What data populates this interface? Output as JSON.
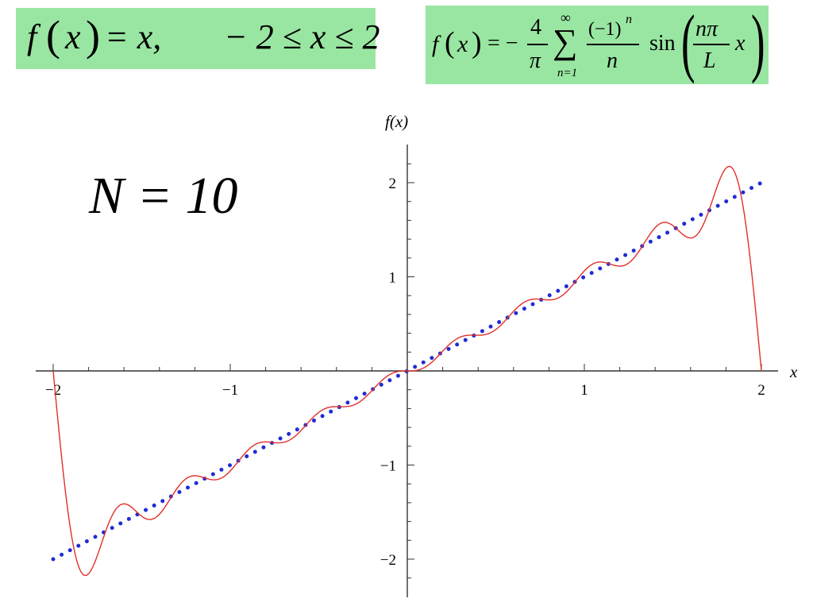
{
  "formula_left": {
    "f": "f",
    "lparen": "(",
    "x": "x",
    "rparen": ")",
    "equals_x": "= x,",
    "domain": "− 2 ≤ x ≤ 2"
  },
  "formula_right": {
    "lhs": "f",
    "lhs_x": "x",
    "eq_minus": "= −",
    "num": "4",
    "den": "π",
    "sum_top": "∞",
    "sigma": "∑",
    "sum_bottom": "n=1",
    "term_num": "(−1)",
    "term_exp": "n",
    "term_den": "n",
    "sin": "sin",
    "npi": "nπ",
    "L": "L",
    "x": "x"
  },
  "annotation": "N = 10",
  "chart_data": {
    "type": "line",
    "title": "",
    "xlabel": "x",
    "ylabel": "f(x)",
    "xlim": [
      -2.05,
      2.1
    ],
    "ylim": [
      -2.4,
      2.4
    ],
    "xticks": [
      -2,
      -1,
      1,
      2
    ],
    "xtick_labels": [
      "−2",
      "−1",
      "1",
      "2"
    ],
    "yticks": [
      -2,
      -1,
      1,
      2
    ],
    "ytick_labels": [
      "−2",
      "−1",
      "1",
      "2"
    ],
    "grid": false,
    "legend": "none",
    "series": [
      {
        "style": "dotted",
        "color": "#1f2bd6",
        "x": [
          -2,
          2
        ],
        "y": [
          -2,
          2
        ]
      },
      {
        "style": "solid",
        "color": "#e0302a",
        "terms": 10,
        "L": 2,
        "x_range": [
          -2,
          2
        ]
      }
    ]
  }
}
